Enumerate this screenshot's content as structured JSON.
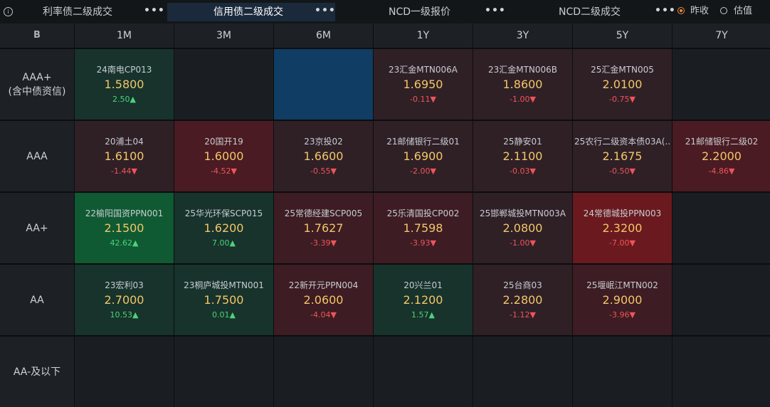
{
  "tabs": [
    {
      "label": "利率债二级成交",
      "more": "•••"
    },
    {
      "label": "信用债二级成交",
      "more": "•••"
    },
    {
      "label": "NCD一级报价",
      "more": "•••"
    },
    {
      "label": "NCD二级成交",
      "more": "•••"
    }
  ],
  "info_icon": "i",
  "radio": {
    "option1": "昨收",
    "option2": "估值",
    "selected": "昨收"
  },
  "corner_icon": "B",
  "columns": [
    "1M",
    "3M",
    "6M",
    "1Y",
    "3Y",
    "5Y",
    "7Y"
  ],
  "rows": [
    {
      "label": "AAA+\n(含中债资信)",
      "cells": [
        {
          "name": "24南电CP013",
          "yield": "1.5800",
          "change": "2.50▲"
        },
        {},
        {},
        {
          "name": "23汇金MTN006A",
          "yield": "1.6950",
          "change": "-0.11▼"
        },
        {
          "name": "23汇金MTN006B",
          "yield": "1.8600",
          "change": "-1.00▼"
        },
        {
          "name": "25汇金MTN005",
          "yield": "2.0100",
          "change": "-0.75▼"
        },
        {}
      ]
    },
    {
      "label": "AAA",
      "cells": [
        {
          "name": "20浦土04",
          "yield": "1.6100",
          "change": "-1.44▼"
        },
        {
          "name": "20国开19",
          "yield": "1.6000",
          "change": "-4.52▼"
        },
        {
          "name": "23京投02",
          "yield": "1.6600",
          "change": "-0.55▼"
        },
        {
          "name": "21邮储银行二级01",
          "yield": "1.6900",
          "change": "-2.00▼"
        },
        {
          "name": "25静安01",
          "yield": "2.1100",
          "change": "-0.03▼"
        },
        {
          "name": "25农行二级资本债03A(..",
          "yield": "2.1675",
          "change": "-0.50▼"
        },
        {
          "name": "21邮储银行二级02",
          "yield": "2.2000",
          "change": "-4.86▼"
        }
      ]
    },
    {
      "label": "AA+",
      "cells": [
        {
          "name": "22榆阳国资PPN001",
          "yield": "2.1500",
          "change": "42.62▲"
        },
        {
          "name": "25华光环保SCP015",
          "yield": "1.6200",
          "change": "7.00▲"
        },
        {
          "name": "25常德经建SCP005",
          "yield": "1.7627",
          "change": "-3.39▼"
        },
        {
          "name": "25乐清国投CP002",
          "yield": "1.7598",
          "change": "-3.93▼"
        },
        {
          "name": "25邯郸城投MTN003A",
          "yield": "2.0800",
          "change": "-1.00▼"
        },
        {
          "name": "24常德城投PPN003",
          "yield": "2.3200",
          "change": "-7.00▼"
        },
        {}
      ]
    },
    {
      "label": "AA",
      "cells": [
        {
          "name": "23宏利03",
          "yield": "2.7000",
          "change": "10.53▲"
        },
        {
          "name": "23桐庐城投MTN001",
          "yield": "1.7500",
          "change": "0.01▲"
        },
        {
          "name": "22新开元PPN004",
          "yield": "2.0600",
          "change": "-4.04▼"
        },
        {
          "name": "20兴兰01",
          "yield": "2.1200",
          "change": "1.57▲"
        },
        {
          "name": "25台商03",
          "yield": "2.2800",
          "change": "-1.12▼"
        },
        {
          "name": "25堰岷江MTN002",
          "yield": "2.9000",
          "change": "-3.96▼"
        },
        {}
      ]
    },
    {
      "label": "AA-及以下",
      "cells": [
        {},
        {},
        {},
        {},
        {},
        {},
        {}
      ]
    }
  ],
  "colors": {
    "up": "#4cd37c",
    "down": "#f0545a",
    "yield": "#f3c66a",
    "active_tab": "#1b2a3b",
    "radio_accent": "#f08c3a"
  }
}
